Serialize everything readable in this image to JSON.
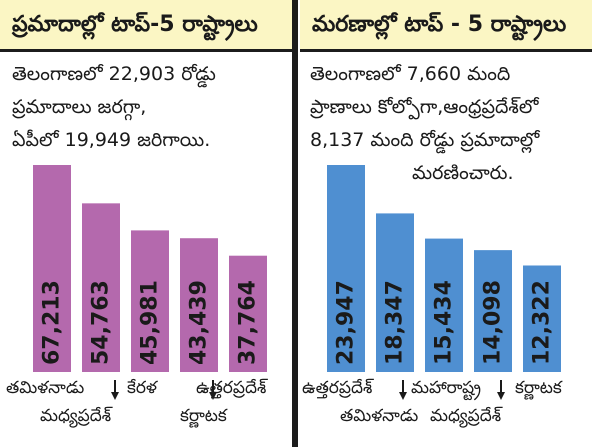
{
  "left": {
    "title": "ప్రమాదాల్లో టాప్-5 రాష్ట్రాలు",
    "summary": [
      "తెలంగాణలో 22,903 రోడ్డు",
      "ప్రమాదాలు జరగ్గా,",
      "ఏపీలో 19,949 జరిగాయి."
    ]
  },
  "right": {
    "title": "మరణాల్లో టాప్ - 5 రాష్ట్రాలు",
    "summary": [
      "తెలంగాణలో 7,660 మంది",
      "ప్రాణాలు కోల్పోగా,ఆంధ్రప్రదేశ్‌లో",
      "8,137 మంది రోడ్డు ప్రమాదాల్లో",
      "మరణించారు."
    ]
  },
  "colors": {
    "left_bar": "#b469ad",
    "right_bar": "#4f8fd1",
    "header_bg": "#fbf6c4",
    "divider": "#1c1c1c"
  },
  "chart_data": [
    {
      "type": "bar",
      "title": "ప్రమాదాల్లో టాప్-5 రాష్ట్రాలు",
      "categories": [
        "తమిళనాడు",
        "మధ్యప్రదేశ్",
        "కేరళ",
        "కర్ణాటక",
        "ఉత్తరప్రదేశ్"
      ],
      "values": [
        67213,
        54763,
        45981,
        43439,
        37764
      ],
      "value_labels": [
        "67,213",
        "54,763",
        "45,981",
        "43,439",
        "37,764"
      ],
      "bar_color": "#b469ad"
    },
    {
      "type": "bar",
      "title": "మరణాల్లో టాప్ - 5 రాష్ట్రాలు",
      "categories": [
        "ఉత్తరప్రదేశ్",
        "తమిళనాడు",
        "మహారాష్ట్ర",
        "మధ్యప్రదేశ్",
        "కర్ణాటక"
      ],
      "values": [
        23947,
        18347,
        15434,
        14098,
        12322
      ],
      "value_labels": [
        "23,947",
        "18,347",
        "15,434",
        "14,098",
        "12,322"
      ],
      "bar_color": "#4f8fd1"
    }
  ]
}
